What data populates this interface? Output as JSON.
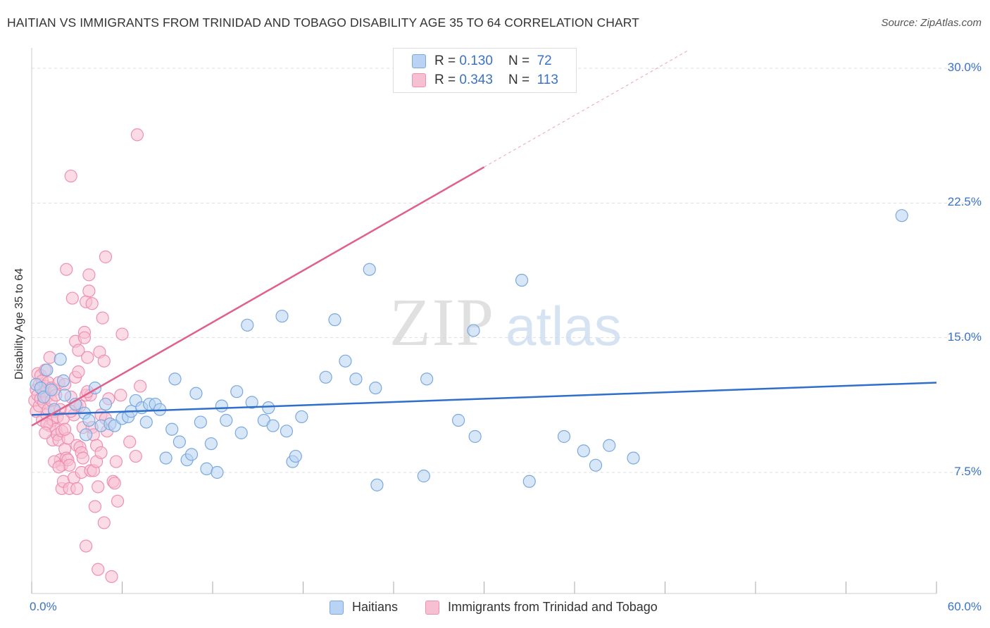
{
  "title": "HAITIAN VS IMMIGRANTS FROM TRINIDAD AND TOBAGO DISABILITY AGE 35 TO 64 CORRELATION CHART",
  "source": "Source: ZipAtlas.com",
  "watermark": {
    "zip": "ZIP",
    "atlas": "atlas"
  },
  "legend_top": {
    "rows": [
      {
        "r_label": "R =",
        "r_value": "0.130",
        "n_label": "N =",
        "n_value": "72"
      },
      {
        "r_label": "R =",
        "r_value": "0.343",
        "n_label": "N =",
        "n_value": "113"
      }
    ]
  },
  "colors": {
    "blue_fill": "#b8d3f3",
    "blue_stroke": "#7aa8e0",
    "blue_line": "#2f6fcc",
    "pink_fill": "#f7c0d2",
    "pink_stroke": "#ef8fb0",
    "pink_line": "#e0608a",
    "tick_text": "#3a72c5",
    "grid": "#dddddd"
  },
  "chart_data": {
    "type": "scatter",
    "title": "HAITIAN VS IMMIGRANTS FROM TRINIDAD AND TOBAGO DISABILITY AGE 35 TO 64 CORRELATION CHART",
    "xlabel": "",
    "ylabel": "Disability Age 35 to 64",
    "xlim": [
      0,
      60
    ],
    "ylim": [
      0,
      31
    ],
    "x_ticks": [
      0,
      60
    ],
    "x_tick_labels": [
      "0.0%",
      "60.0%"
    ],
    "y_ticks": [
      7.5,
      15.0,
      22.5,
      30.0
    ],
    "y_tick_labels": [
      "7.5%",
      "15.0%",
      "22.5%",
      "30.0%"
    ],
    "grid": true,
    "legend_position": "bottom",
    "series": [
      {
        "name": "Haitians",
        "color": "#b8d3f3",
        "trend": {
          "x": [
            0,
            60
          ],
          "y": [
            10.7,
            12.5
          ]
        },
        "points": [
          [
            0.3,
            12.4
          ],
          [
            0.6,
            12.2
          ],
          [
            0.8,
            11.7
          ],
          [
            1.0,
            13.2
          ],
          [
            1.3,
            12.1
          ],
          [
            1.5,
            11.0
          ],
          [
            1.9,
            13.8
          ],
          [
            2.1,
            12.6
          ],
          [
            2.2,
            11.8
          ],
          [
            2.9,
            11.3
          ],
          [
            3.5,
            10.8
          ],
          [
            3.6,
            9.6
          ],
          [
            3.8,
            10.4
          ],
          [
            4.2,
            12.2
          ],
          [
            4.6,
            10.1
          ],
          [
            4.9,
            11.3
          ],
          [
            5.2,
            10.2
          ],
          [
            5.5,
            10.1
          ],
          [
            6.0,
            10.5
          ],
          [
            6.4,
            10.6
          ],
          [
            6.6,
            10.9
          ],
          [
            6.9,
            11.5
          ],
          [
            7.3,
            11.1
          ],
          [
            7.6,
            10.3
          ],
          [
            7.8,
            11.3
          ],
          [
            8.2,
            11.3
          ],
          [
            8.5,
            11.0
          ],
          [
            8.9,
            8.3
          ],
          [
            9.3,
            9.9
          ],
          [
            9.5,
            12.7
          ],
          [
            9.8,
            9.2
          ],
          [
            10.3,
            8.2
          ],
          [
            10.6,
            8.5
          ],
          [
            10.9,
            11.9
          ],
          [
            11.2,
            10.3
          ],
          [
            11.6,
            7.7
          ],
          [
            11.9,
            9.1
          ],
          [
            12.3,
            7.5
          ],
          [
            12.6,
            11.2
          ],
          [
            12.9,
            10.4
          ],
          [
            13.6,
            12.0
          ],
          [
            13.9,
            9.7
          ],
          [
            14.3,
            15.7
          ],
          [
            14.6,
            11.4
          ],
          [
            15.4,
            10.4
          ],
          [
            15.7,
            11.1
          ],
          [
            16.0,
            10.1
          ],
          [
            16.6,
            16.2
          ],
          [
            16.9,
            9.8
          ],
          [
            17.3,
            8.1
          ],
          [
            17.5,
            8.4
          ],
          [
            17.9,
            10.6
          ],
          [
            19.5,
            12.8
          ],
          [
            20.1,
            16.0
          ],
          [
            20.8,
            13.7
          ],
          [
            21.5,
            12.7
          ],
          [
            22.4,
            18.8
          ],
          [
            22.8,
            12.2
          ],
          [
            22.9,
            6.8
          ],
          [
            26.0,
            7.3
          ],
          [
            26.2,
            12.7
          ],
          [
            28.3,
            10.4
          ],
          [
            29.3,
            15.4
          ],
          [
            29.4,
            9.5
          ],
          [
            32.5,
            18.2
          ],
          [
            33.0,
            7.0
          ],
          [
            35.3,
            9.5
          ],
          [
            36.6,
            8.7
          ],
          [
            37.4,
            7.9
          ],
          [
            38.3,
            9.0
          ],
          [
            39.9,
            8.3
          ],
          [
            57.7,
            21.8
          ]
        ]
      },
      {
        "name": "Immigrants from Trinidad and Tobago",
        "color": "#f7c0d2",
        "trend": {
          "x": [
            0,
            30
          ],
          "y": [
            10.1,
            24.5
          ]
        },
        "points": [
          [
            0.2,
            11.5
          ],
          [
            0.3,
            12.1
          ],
          [
            0.3,
            10.9
          ],
          [
            0.4,
            13.0
          ],
          [
            0.4,
            11.8
          ],
          [
            0.5,
            12.4
          ],
          [
            0.5,
            11.2
          ],
          [
            0.6,
            12.9
          ],
          [
            0.6,
            11.6
          ],
          [
            0.7,
            12.6
          ],
          [
            0.7,
            10.4
          ],
          [
            0.8,
            12.0
          ],
          [
            0.8,
            11.4
          ],
          [
            0.9,
            13.2
          ],
          [
            0.9,
            12.3
          ],
          [
            1.0,
            11.7
          ],
          [
            1.0,
            10.7
          ],
          [
            1.1,
            12.5
          ],
          [
            1.1,
            11.0
          ],
          [
            1.2,
            13.9
          ],
          [
            1.2,
            10.1
          ],
          [
            1.3,
            12.2
          ],
          [
            1.3,
            11.5
          ],
          [
            1.4,
            10.4
          ],
          [
            1.4,
            9.3
          ],
          [
            1.5,
            12.1
          ],
          [
            1.5,
            10.9
          ],
          [
            1.6,
            11.8
          ],
          [
            1.6,
            9.9
          ],
          [
            1.7,
            10.6
          ],
          [
            1.7,
            9.6
          ],
          [
            1.8,
            12.5
          ],
          [
            1.8,
            9.3
          ],
          [
            1.9,
            11.0
          ],
          [
            1.9,
            8.2
          ],
          [
            2.0,
            9.8
          ],
          [
            2.0,
            7.9
          ],
          [
            2.0,
            6.6
          ],
          [
            2.1,
            10.5
          ],
          [
            2.1,
            7.0
          ],
          [
            2.2,
            12.4
          ],
          [
            2.2,
            8.8
          ],
          [
            2.3,
            8.3
          ],
          [
            2.3,
            18.8
          ],
          [
            2.4,
            9.4
          ],
          [
            2.4,
            8.2
          ],
          [
            2.5,
            7.9
          ],
          [
            2.5,
            6.6
          ],
          [
            2.6,
            24.0
          ],
          [
            2.6,
            11.7
          ],
          [
            2.7,
            17.2
          ],
          [
            2.8,
            10.7
          ],
          [
            2.8,
            7.2
          ],
          [
            2.9,
            12.8
          ],
          [
            2.9,
            14.8
          ],
          [
            3.0,
            11.2
          ],
          [
            3.0,
            9.0
          ],
          [
            3.0,
            6.6
          ],
          [
            3.1,
            14.3
          ],
          [
            3.2,
            11.2
          ],
          [
            3.2,
            8.9
          ],
          [
            3.3,
            8.6
          ],
          [
            3.3,
            7.5
          ],
          [
            3.4,
            10.0
          ],
          [
            3.4,
            8.3
          ],
          [
            3.5,
            15.3
          ],
          [
            3.5,
            15.0
          ],
          [
            3.6,
            11.8
          ],
          [
            3.6,
            17.0
          ],
          [
            3.6,
            3.4
          ],
          [
            3.7,
            13.9
          ],
          [
            3.8,
            18.5
          ],
          [
            3.8,
            17.6
          ],
          [
            3.9,
            11.8
          ],
          [
            3.9,
            7.6
          ],
          [
            4.0,
            16.9
          ],
          [
            4.0,
            10.0
          ],
          [
            4.1,
            9.6
          ],
          [
            4.1,
            7.6
          ],
          [
            4.2,
            5.6
          ],
          [
            4.3,
            9.0
          ],
          [
            4.3,
            8.1
          ],
          [
            4.4,
            2.1
          ],
          [
            4.4,
            6.7
          ],
          [
            4.5,
            14.2
          ],
          [
            4.6,
            10.7
          ],
          [
            4.7,
            16.1
          ],
          [
            4.8,
            13.7
          ],
          [
            4.8,
            4.7
          ],
          [
            4.9,
            10.5
          ],
          [
            4.9,
            19.5
          ],
          [
            5.0,
            9.8
          ],
          [
            5.1,
            11.6
          ],
          [
            5.3,
            1.7
          ],
          [
            5.4,
            7.0
          ],
          [
            5.5,
            6.9
          ],
          [
            5.6,
            8.1
          ],
          [
            5.7,
            5.9
          ],
          [
            5.9,
            11.8
          ],
          [
            6.0,
            15.2
          ],
          [
            6.5,
            9.2
          ],
          [
            6.9,
            8.4
          ],
          [
            7.0,
            26.3
          ],
          [
            7.2,
            12.3
          ],
          [
            1.0,
            10.2
          ],
          [
            1.5,
            8.1
          ],
          [
            0.9,
            9.7
          ],
          [
            2.6,
            10.9
          ],
          [
            3.1,
            13.1
          ],
          [
            1.8,
            7.8
          ],
          [
            2.2,
            9.9
          ],
          [
            3.7,
            12.0
          ],
          [
            4.6,
            8.6
          ]
        ]
      }
    ]
  },
  "legend_bottom": [
    {
      "label": "Haitians"
    },
    {
      "label": "Immigrants from Trinidad and Tobago"
    }
  ]
}
